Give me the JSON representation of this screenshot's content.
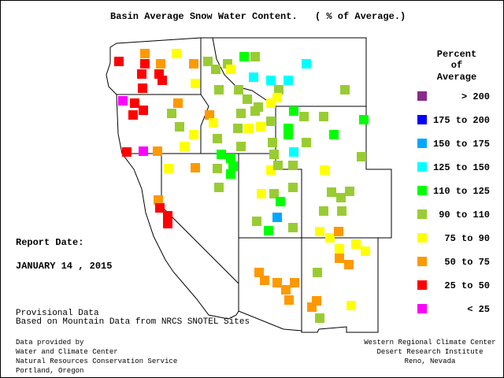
{
  "title": "Basin Average Snow Water Content.",
  "subtitle": "( % of Average.)",
  "legend": {
    "title": [
      "Percent",
      "of",
      "Average"
    ],
    "items": [
      {
        "label": "> 200",
        "color": "#8b2a8b"
      },
      {
        "label": "175 to 200",
        "color": "#0000ff"
      },
      {
        "label": "150 to 175",
        "color": "#00a8ff"
      },
      {
        "label": "125 to 150",
        "color": "#00ffff"
      },
      {
        "label": "110 to 125",
        "color": "#00ff00"
      },
      {
        "label": "90 to 110",
        "color": "#99cc33"
      },
      {
        "label": "75 to  90",
        "color": "#ffff00"
      },
      {
        "label": "50 to  75",
        "color": "#ff9900"
      },
      {
        "label": "25 to  50",
        "color": "#ff0000"
      },
      {
        "label": "< 25",
        "color": "#ff00ff"
      }
    ]
  },
  "report": {
    "label": "Report Date:",
    "date": "JANUARY 14 , 2015"
  },
  "provisional": [
    "Provisional Data",
    "Based on Mountain Data from NRCS SNOTEL Sites"
  ],
  "credits_left": [
    "Data provided by",
    "Water and Climate Center",
    "Natural Resources Conservation Service",
    "Portland, Oregon"
  ],
  "credits_right": [
    "Western Regional Climate Center",
    "Desert Research Institute",
    "Reno, Nevada"
  ]
}
